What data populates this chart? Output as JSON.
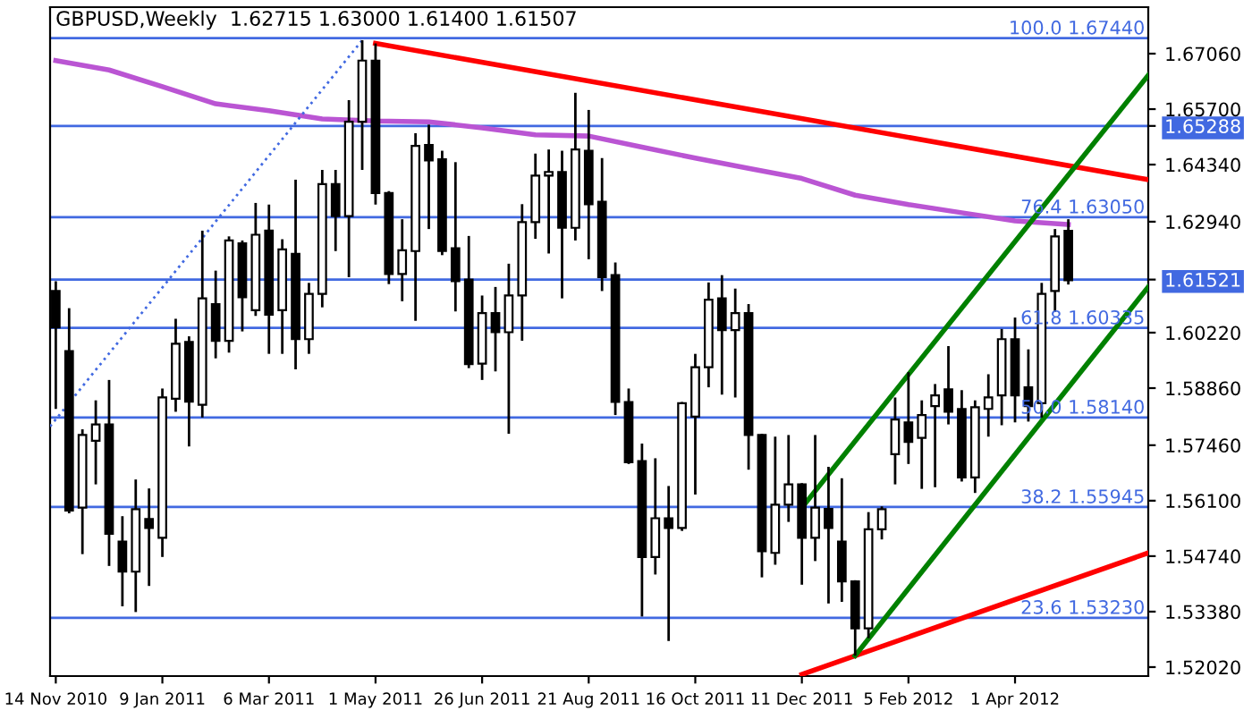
{
  "chart_data": {
    "type": "candlestick",
    "title": "GBPUSD,Weekly  1.62715 1.63000 1.61400 1.61507",
    "x": [
      "2010-11-14",
      "2010-11-21",
      "2010-11-28",
      "2010-12-05",
      "2010-12-12",
      "2010-12-19",
      "2010-12-26",
      "2011-01-02",
      "2011-01-09",
      "2011-01-16",
      "2011-01-23",
      "2011-01-30",
      "2011-02-06",
      "2011-02-13",
      "2011-02-20",
      "2011-02-27",
      "2011-03-06",
      "2011-03-13",
      "2011-03-20",
      "2011-03-27",
      "2011-04-03",
      "2011-04-10",
      "2011-04-17",
      "2011-04-24",
      "2011-05-01",
      "2011-05-08",
      "2011-05-15",
      "2011-05-22",
      "2011-05-29",
      "2011-06-05",
      "2011-06-12",
      "2011-06-19",
      "2011-06-26",
      "2011-07-03",
      "2011-07-10",
      "2011-07-17",
      "2011-07-24",
      "2011-07-31",
      "2011-08-07",
      "2011-08-14",
      "2011-08-21",
      "2011-08-28",
      "2011-09-04",
      "2011-09-11",
      "2011-09-18",
      "2011-09-25",
      "2011-10-02",
      "2011-10-09",
      "2011-10-16",
      "2011-10-23",
      "2011-10-30",
      "2011-11-06",
      "2011-11-13",
      "2011-11-20",
      "2011-11-27",
      "2011-12-04",
      "2011-12-11",
      "2011-12-18",
      "2011-12-25",
      "2012-01-01",
      "2012-01-08",
      "2012-01-15",
      "2012-01-22",
      "2012-01-29",
      "2012-02-05",
      "2012-02-12",
      "2012-02-19",
      "2012-02-26",
      "2012-03-04",
      "2012-03-11",
      "2012-03-18",
      "2012-03-25",
      "2012-04-01",
      "2012-04-08",
      "2012-04-15",
      "2012-04-22",
      "2012-04-29"
    ],
    "ohlc": [
      [
        1.6124,
        1.6148,
        1.5835,
        1.6035
      ],
      [
        1.5977,
        1.6082,
        1.5579,
        1.5586
      ],
      [
        1.5593,
        1.5785,
        1.5479,
        1.5771
      ],
      [
        1.5757,
        1.5856,
        1.565,
        1.5797
      ],
      [
        1.5797,
        1.5906,
        1.545,
        1.5529
      ],
      [
        1.551,
        1.5572,
        1.5351,
        1.5436
      ],
      [
        1.5436,
        1.5662,
        1.5337,
        1.5589
      ],
      [
        1.5565,
        1.564,
        1.5401,
        1.5543
      ],
      [
        1.5519,
        1.5885,
        1.5472,
        1.5863
      ],
      [
        1.586,
        1.6056,
        1.5828,
        1.5995
      ],
      [
        1.5999,
        1.6013,
        1.5743,
        1.5853
      ],
      [
        1.5845,
        1.6272,
        1.5814,
        1.6106
      ],
      [
        1.6092,
        1.6174,
        1.5959,
        1.6002
      ],
      [
        1.6002,
        1.6258,
        1.5973,
        1.6248
      ],
      [
        1.6241,
        1.6248,
        1.6025,
        1.6109
      ],
      [
        1.6077,
        1.634,
        1.6063,
        1.6262
      ],
      [
        1.6272,
        1.6336,
        1.597,
        1.6066
      ],
      [
        1.6077,
        1.6251,
        1.597,
        1.6226
      ],
      [
        1.6215,
        1.6397,
        1.5932,
        1.6006
      ],
      [
        1.6006,
        1.6144,
        1.597,
        1.6117
      ],
      [
        1.6117,
        1.6421,
        1.6084,
        1.6386
      ],
      [
        1.6386,
        1.6421,
        1.6222,
        1.6308
      ],
      [
        1.6308,
        1.6592,
        1.6158,
        1.6539
      ],
      [
        1.6539,
        1.6739,
        1.6421,
        1.6689
      ],
      [
        1.6689,
        1.6731,
        1.6336,
        1.6364
      ],
      [
        1.6364,
        1.6369,
        1.6141,
        1.6166
      ],
      [
        1.6166,
        1.63,
        1.6099,
        1.6224
      ],
      [
        1.6222,
        1.6511,
        1.6051,
        1.648
      ],
      [
        1.6482,
        1.6532,
        1.6276,
        1.6444
      ],
      [
        1.6447,
        1.6468,
        1.6212,
        1.6222
      ],
      [
        1.6229,
        1.644,
        1.6074,
        1.6148
      ],
      [
        1.6152,
        1.6259,
        1.5935,
        1.5945
      ],
      [
        1.5946,
        1.6113,
        1.5906,
        1.607
      ],
      [
        1.607,
        1.6134,
        1.5927,
        1.6023
      ],
      [
        1.6023,
        1.6191,
        1.5774,
        1.6113
      ],
      [
        1.6113,
        1.6337,
        1.6002,
        1.6293
      ],
      [
        1.6293,
        1.6461,
        1.6252,
        1.6407
      ],
      [
        1.6407,
        1.6471,
        1.6216,
        1.6416
      ],
      [
        1.6416,
        1.6468,
        1.6106,
        1.6279
      ],
      [
        1.6279,
        1.661,
        1.6248,
        1.6471
      ],
      [
        1.6468,
        1.6568,
        1.6202,
        1.6337
      ],
      [
        1.6343,
        1.645,
        1.6124,
        1.6158
      ],
      [
        1.6163,
        1.6194,
        1.582,
        1.5852
      ],
      [
        1.5852,
        1.5885,
        1.57,
        1.5704
      ],
      [
        1.5707,
        1.575,
        1.5326,
        1.5472
      ],
      [
        1.5472,
        1.5714,
        1.5429,
        1.5567
      ],
      [
        1.5567,
        1.5646,
        1.5266,
        1.5543
      ],
      [
        1.5543,
        1.5852,
        1.5536,
        1.5849
      ],
      [
        1.5816,
        1.597,
        1.5625,
        1.5937
      ],
      [
        1.5937,
        1.6145,
        1.5888,
        1.6103
      ],
      [
        1.6106,
        1.6163,
        1.587,
        1.6028
      ],
      [
        1.6028,
        1.613,
        1.5863,
        1.607
      ],
      [
        1.607,
        1.6092,
        1.5686,
        1.5771
      ],
      [
        1.5771,
        1.5774,
        1.5422,
        1.5486
      ],
      [
        1.5482,
        1.5767,
        1.5453,
        1.56
      ],
      [
        1.56,
        1.5771,
        1.5558,
        1.565
      ],
      [
        1.565,
        1.5653,
        1.5404,
        1.5519
      ],
      [
        1.5519,
        1.5771,
        1.5462,
        1.5593
      ],
      [
        1.559,
        1.5693,
        1.5358,
        1.5543
      ],
      [
        1.551,
        1.5665,
        1.5362,
        1.5412
      ],
      [
        1.5412,
        1.5415,
        1.523,
        1.5297
      ],
      [
        1.5297,
        1.5582,
        1.5273,
        1.554
      ],
      [
        1.554,
        1.5596,
        1.5515,
        1.5589
      ],
      [
        1.5724,
        1.5863,
        1.565,
        1.5809
      ],
      [
        1.5802,
        1.5925,
        1.57,
        1.5754
      ],
      [
        1.5764,
        1.5856,
        1.5639,
        1.582
      ],
      [
        1.5842,
        1.5896,
        1.5643,
        1.5868
      ],
      [
        1.5883,
        1.5989,
        1.5797,
        1.5828
      ],
      [
        1.5835,
        1.5881,
        1.5657,
        1.5667
      ],
      [
        1.5667,
        1.5856,
        1.5629,
        1.5839
      ],
      [
        1.5835,
        1.592,
        1.5767,
        1.5863
      ],
      [
        1.5868,
        1.6031,
        1.5795,
        1.6006
      ],
      [
        1.6006,
        1.6059,
        1.5802,
        1.5868
      ],
      [
        1.5888,
        1.5981,
        1.5804,
        1.5842
      ],
      [
        1.5849,
        1.6144,
        1.5814,
        1.6117
      ],
      [
        1.6124,
        1.6276,
        1.6073,
        1.6258
      ],
      [
        1.62715,
        1.63,
        1.614,
        1.61507
      ]
    ],
    "series": [
      {
        "type": "line",
        "color": "#ba55d3",
        "x": [
          "2010-11-14",
          "2010-12-12",
          "2011-01-09",
          "2011-02-06",
          "2011-03-06",
          "2011-04-03",
          "2011-05-01",
          "2011-05-29",
          "2011-06-26",
          "2011-07-24",
          "2011-08-21",
          "2011-09-18",
          "2011-10-16",
          "2011-11-13",
          "2011-12-11",
          "2012-01-08",
          "2012-02-05",
          "2012-03-04",
          "2012-04-01",
          "2012-04-29"
        ],
        "values": [
          1.6689,
          1.6666,
          1.6625,
          1.6583,
          1.6566,
          1.6546,
          1.6541,
          1.6539,
          1.6524,
          1.6507,
          1.6504,
          1.6477,
          1.645,
          1.6425,
          1.64,
          1.6359,
          1.6336,
          1.6316,
          1.6296,
          1.6287
        ]
      },
      {
        "type": "line",
        "color": "#ff0000",
        "x": [
          "2011-05-01",
          "2012-06-10"
        ],
        "values": [
          1.6731,
          1.6397
        ]
      },
      {
        "type": "line",
        "color": "#ff0000",
        "x": [
          "2011-12-11",
          "2012-06-10"
        ],
        "values": [
          1.5184,
          1.5482
        ]
      },
      {
        "type": "line",
        "color": "#008000",
        "x": [
          "2012-01-08",
          "2012-06-10"
        ],
        "values": [
          1.523,
          1.6134
        ]
      },
      {
        "type": "line",
        "color": "#008000",
        "x": [
          "2011-12-11",
          "2012-06-10"
        ],
        "values": [
          1.5593,
          1.6653
        ]
      },
      {
        "type": "line",
        "color": "#4169e1",
        "line_style": "dotted",
        "x": [
          "2010-11-11",
          "2011-04-24"
        ],
        "values": [
          1.5792,
          1.6739
        ]
      }
    ],
    "ref_lines": [
      {
        "axis": "y",
        "value": 1.6744,
        "label": "100.0 1.67440",
        "color": "#4169e1"
      },
      {
        "axis": "y",
        "value": 1.65288,
        "color": "#4169e1"
      },
      {
        "axis": "y",
        "value": 1.6305,
        "label": "76.4 1.63050",
        "color": "#4169e1"
      },
      {
        "axis": "y",
        "value": 1.61521,
        "color": "#4169e1"
      },
      {
        "axis": "y",
        "value": 1.60335,
        "label": "61.8 1.60335",
        "color": "#4169e1"
      },
      {
        "axis": "y",
        "value": 1.5814,
        "label": "50.0 1.58140",
        "color": "#4169e1"
      },
      {
        "axis": "y",
        "value": 1.55945,
        "label": "38.2 1.55945",
        "color": "#4169e1"
      },
      {
        "axis": "y",
        "value": 1.5323,
        "label": "23.6 1.53230",
        "color": "#4169e1"
      }
    ],
    "xlim": [
      "2010-11-11",
      "2012-06-10"
    ],
    "xticks": [
      {
        "value": "2010-11-14",
        "label": "14 Nov 2010"
      },
      {
        "value": "2011-01-09",
        "label": "9 Jan 2011"
      },
      {
        "value": "2011-03-06",
        "label": "6 Mar 2011"
      },
      {
        "value": "2011-05-01",
        "label": "1 May 2011"
      },
      {
        "value": "2011-06-26",
        "label": "26 Jun 2011"
      },
      {
        "value": "2011-08-21",
        "label": "21 Aug 2011"
      },
      {
        "value": "2011-10-16",
        "label": "16 Oct 2011"
      },
      {
        "value": "2011-12-11",
        "label": "11 Dec 2011"
      },
      {
        "value": "2012-02-05",
        "label": "5 Feb 2012"
      },
      {
        "value": "2012-04-01",
        "label": "1 Apr 2012"
      }
    ],
    "ylim": [
      1.518,
      1.682
    ],
    "yticks": [
      {
        "value": 1.5202,
        "label": "1.52020"
      },
      {
        "value": 1.5338,
        "label": "1.53380"
      },
      {
        "value": 1.5474,
        "label": "1.54740"
      },
      {
        "value": 1.561,
        "label": "1.56100"
      },
      {
        "value": 1.5746,
        "label": "1.57460"
      },
      {
        "value": 1.5886,
        "label": "1.58860"
      },
      {
        "value": 1.6022,
        "label": "1.60220"
      },
      {
        "value": 1.61521,
        "label": "1.61521"
      },
      {
        "value": 1.6294,
        "label": "1.62940"
      },
      {
        "value": 1.6434,
        "label": "1.64340"
      },
      {
        "value": 1.65288,
        "label": "1.65288"
      },
      {
        "value": 1.657,
        "label": "1.65700"
      },
      {
        "value": 1.6706,
        "label": "1.67060"
      }
    ]
  }
}
